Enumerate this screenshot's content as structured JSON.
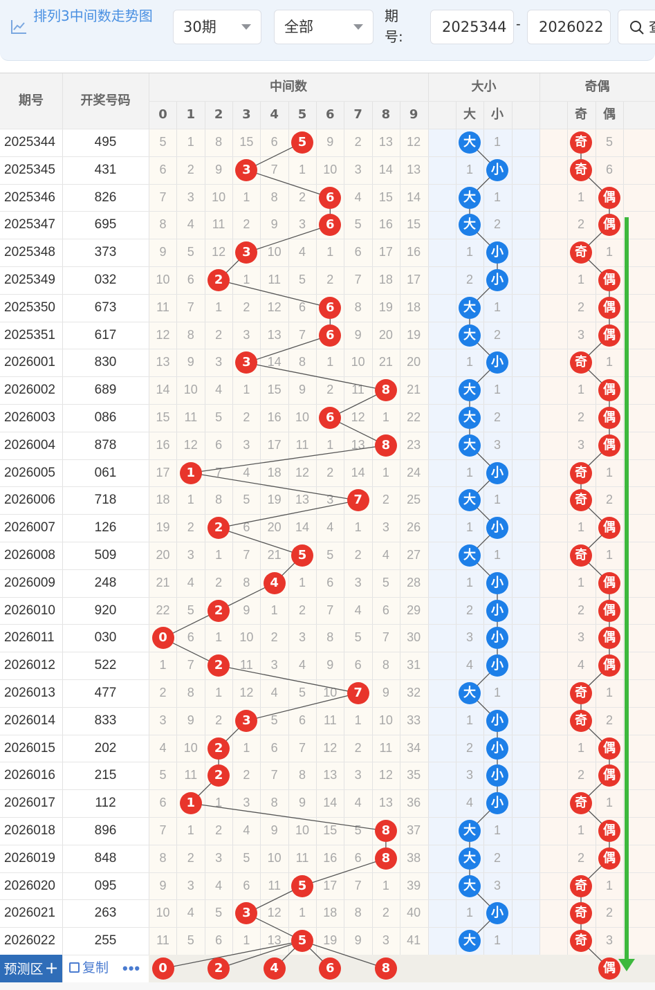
{
  "toolbar": {
    "title": "排列3中间数走势图",
    "periods_select": "30期",
    "type_select": "全部",
    "issue_label": "期号:",
    "start_issue": "2025344",
    "dash": "-",
    "end_issue": "2026022",
    "search_label": "查"
  },
  "table_headers": {
    "issue": "期号",
    "draw": "开奖号码",
    "middle": "中间数",
    "big_small": "大小",
    "odd_even": "奇偶",
    "digits": [
      "0",
      "1",
      "2",
      "3",
      "4",
      "5",
      "6",
      "7",
      "8",
      "9"
    ],
    "big": "大",
    "small": "小",
    "odd": "奇",
    "even": "偶"
  },
  "rows": [
    {
      "issue": "2025344",
      "draw": "495",
      "digits": [
        "5",
        "1",
        "8",
        "15",
        "6",
        "5",
        "9",
        "2",
        "13",
        "12"
      ],
      "mid": 5,
      "bs": [
        "大",
        "1"
      ],
      "oe": [
        "奇",
        "5"
      ]
    },
    {
      "issue": "2025345",
      "draw": "431",
      "digits": [
        "6",
        "2",
        "9",
        "3",
        "7",
        "1",
        "10",
        "3",
        "14",
        "13"
      ],
      "mid": 3,
      "bs": [
        "1",
        "小"
      ],
      "oe": [
        "奇",
        "6"
      ]
    },
    {
      "issue": "2025346",
      "draw": "826",
      "digits": [
        "7",
        "3",
        "10",
        "1",
        "8",
        "2",
        "6",
        "4",
        "15",
        "14"
      ],
      "mid": 6,
      "bs": [
        "大",
        "1"
      ],
      "oe": [
        "1",
        "偶"
      ]
    },
    {
      "issue": "2025347",
      "draw": "695",
      "digits": [
        "8",
        "4",
        "11",
        "2",
        "9",
        "3",
        "6",
        "5",
        "16",
        "15"
      ],
      "mid": 6,
      "bs": [
        "大",
        "2"
      ],
      "oe": [
        "2",
        "偶"
      ]
    },
    {
      "issue": "2025348",
      "draw": "373",
      "digits": [
        "9",
        "5",
        "12",
        "3",
        "10",
        "4",
        "1",
        "6",
        "17",
        "16"
      ],
      "mid": 3,
      "bs": [
        "1",
        "小"
      ],
      "oe": [
        "奇",
        "1"
      ]
    },
    {
      "issue": "2025349",
      "draw": "032",
      "digits": [
        "10",
        "6",
        "2",
        "1",
        "11",
        "5",
        "2",
        "7",
        "18",
        "17"
      ],
      "mid": 2,
      "bs": [
        "2",
        "小"
      ],
      "oe": [
        "1",
        "偶"
      ]
    },
    {
      "issue": "2025350",
      "draw": "673",
      "digits": [
        "11",
        "7",
        "1",
        "2",
        "12",
        "6",
        "6",
        "8",
        "19",
        "18"
      ],
      "mid": 6,
      "bs": [
        "大",
        "1"
      ],
      "oe": [
        "2",
        "偶"
      ]
    },
    {
      "issue": "2025351",
      "draw": "617",
      "digits": [
        "12",
        "8",
        "2",
        "3",
        "13",
        "7",
        "6",
        "9",
        "20",
        "19"
      ],
      "mid": 6,
      "bs": [
        "大",
        "2"
      ],
      "oe": [
        "3",
        "偶"
      ]
    },
    {
      "issue": "2026001",
      "draw": "830",
      "digits": [
        "13",
        "9",
        "3",
        "3",
        "14",
        "8",
        "1",
        "10",
        "21",
        "20"
      ],
      "mid": 3,
      "bs": [
        "1",
        "小"
      ],
      "oe": [
        "奇",
        "1"
      ]
    },
    {
      "issue": "2026002",
      "draw": "689",
      "digits": [
        "14",
        "10",
        "4",
        "1",
        "15",
        "9",
        "2",
        "11",
        "8",
        "21"
      ],
      "mid": 8,
      "bs": [
        "大",
        "1"
      ],
      "oe": [
        "1",
        "偶"
      ]
    },
    {
      "issue": "2026003",
      "draw": "086",
      "digits": [
        "15",
        "11",
        "5",
        "2",
        "16",
        "10",
        "6",
        "12",
        "1",
        "22"
      ],
      "mid": 6,
      "bs": [
        "大",
        "2"
      ],
      "oe": [
        "2",
        "偶"
      ]
    },
    {
      "issue": "2026004",
      "draw": "878",
      "digits": [
        "16",
        "12",
        "6",
        "3",
        "17",
        "11",
        "1",
        "13",
        "8",
        "23"
      ],
      "mid": 8,
      "bs": [
        "大",
        "3"
      ],
      "oe": [
        "3",
        "偶"
      ]
    },
    {
      "issue": "2026005",
      "draw": "061",
      "digits": [
        "17",
        "1",
        "7",
        "4",
        "18",
        "12",
        "2",
        "14",
        "1",
        "24"
      ],
      "mid": 1,
      "bs": [
        "1",
        "小"
      ],
      "oe": [
        "奇",
        "1"
      ]
    },
    {
      "issue": "2026006",
      "draw": "718",
      "digits": [
        "18",
        "1",
        "8",
        "5",
        "19",
        "13",
        "3",
        "7",
        "2",
        "25"
      ],
      "mid": 7,
      "bs": [
        "大",
        "1"
      ],
      "oe": [
        "奇",
        "2"
      ]
    },
    {
      "issue": "2026007",
      "draw": "126",
      "digits": [
        "19",
        "2",
        "2",
        "6",
        "20",
        "14",
        "4",
        "1",
        "3",
        "26"
      ],
      "mid": 2,
      "bs": [
        "1",
        "小"
      ],
      "oe": [
        "1",
        "偶"
      ]
    },
    {
      "issue": "2026008",
      "draw": "509",
      "digits": [
        "20",
        "3",
        "1",
        "7",
        "21",
        "5",
        "5",
        "2",
        "4",
        "27"
      ],
      "mid": 5,
      "bs": [
        "大",
        "1"
      ],
      "oe": [
        "奇",
        "1"
      ]
    },
    {
      "issue": "2026009",
      "draw": "248",
      "digits": [
        "21",
        "4",
        "2",
        "8",
        "4",
        "1",
        "6",
        "3",
        "5",
        "28"
      ],
      "mid": 4,
      "bs": [
        "1",
        "小"
      ],
      "oe": [
        "1",
        "偶"
      ]
    },
    {
      "issue": "2026010",
      "draw": "920",
      "digits": [
        "22",
        "5",
        "2",
        "9",
        "1",
        "2",
        "7",
        "4",
        "6",
        "29"
      ],
      "mid": 2,
      "bs": [
        "2",
        "小"
      ],
      "oe": [
        "2",
        "偶"
      ]
    },
    {
      "issue": "2026011",
      "draw": "030",
      "digits": [
        "0",
        "6",
        "1",
        "10",
        "2",
        "3",
        "8",
        "5",
        "7",
        "30"
      ],
      "mid": 0,
      "bs": [
        "3",
        "小"
      ],
      "oe": [
        "3",
        "偶"
      ]
    },
    {
      "issue": "2026012",
      "draw": "522",
      "digits": [
        "1",
        "7",
        "2",
        "11",
        "3",
        "4",
        "9",
        "6",
        "8",
        "31"
      ],
      "mid": 2,
      "bs": [
        "4",
        "小"
      ],
      "oe": [
        "4",
        "偶"
      ]
    },
    {
      "issue": "2026013",
      "draw": "477",
      "digits": [
        "2",
        "8",
        "1",
        "12",
        "4",
        "5",
        "10",
        "7",
        "9",
        "32"
      ],
      "mid": 7,
      "bs": [
        "大",
        "1"
      ],
      "oe": [
        "奇",
        "1"
      ]
    },
    {
      "issue": "2026014",
      "draw": "833",
      "digits": [
        "3",
        "9",
        "2",
        "3",
        "5",
        "6",
        "11",
        "1",
        "10",
        "33"
      ],
      "mid": 3,
      "bs": [
        "1",
        "小"
      ],
      "oe": [
        "奇",
        "2"
      ]
    },
    {
      "issue": "2026015",
      "draw": "202",
      "digits": [
        "4",
        "10",
        "2",
        "1",
        "6",
        "7",
        "12",
        "2",
        "11",
        "34"
      ],
      "mid": 2,
      "bs": [
        "2",
        "小"
      ],
      "oe": [
        "1",
        "偶"
      ]
    },
    {
      "issue": "2026016",
      "draw": "215",
      "digits": [
        "5",
        "11",
        "2",
        "2",
        "7",
        "8",
        "13",
        "3",
        "12",
        "35"
      ],
      "mid": 2,
      "bs": [
        "3",
        "小"
      ],
      "oe": [
        "2",
        "偶"
      ]
    },
    {
      "issue": "2026017",
      "draw": "112",
      "digits": [
        "6",
        "1",
        "1",
        "3",
        "8",
        "9",
        "14",
        "4",
        "13",
        "36"
      ],
      "mid": 1,
      "bs": [
        "4",
        "小"
      ],
      "oe": [
        "奇",
        "1"
      ]
    },
    {
      "issue": "2026018",
      "draw": "896",
      "digits": [
        "7",
        "1",
        "2",
        "4",
        "9",
        "10",
        "15",
        "5",
        "8",
        "37"
      ],
      "mid": 8,
      "bs": [
        "大",
        "1"
      ],
      "oe": [
        "1",
        "偶"
      ]
    },
    {
      "issue": "2026019",
      "draw": "848",
      "digits": [
        "8",
        "2",
        "3",
        "5",
        "10",
        "11",
        "16",
        "6",
        "8",
        "38"
      ],
      "mid": 8,
      "bs": [
        "大",
        "2"
      ],
      "oe": [
        "2",
        "偶"
      ]
    },
    {
      "issue": "2026020",
      "draw": "095",
      "digits": [
        "9",
        "3",
        "4",
        "6",
        "11",
        "5",
        "17",
        "7",
        "1",
        "39"
      ],
      "mid": 5,
      "bs": [
        "大",
        "3"
      ],
      "oe": [
        "奇",
        "1"
      ]
    },
    {
      "issue": "2026021",
      "draw": "263",
      "digits": [
        "10",
        "4",
        "5",
        "3",
        "12",
        "1",
        "18",
        "8",
        "2",
        "40"
      ],
      "mid": 3,
      "bs": [
        "1",
        "小"
      ],
      "oe": [
        "奇",
        "2"
      ]
    },
    {
      "issue": "2026022",
      "draw": "255",
      "digits": [
        "11",
        "5",
        "6",
        "1",
        "13",
        "5",
        "19",
        "9",
        "3",
        "41"
      ],
      "mid": 5,
      "bs": [
        "大",
        "1"
      ],
      "oe": [
        "奇",
        "3"
      ]
    }
  ],
  "predict": {
    "label": "预测区",
    "plus": "+",
    "copy": "复制",
    "more": "•••",
    "balls": [
      "0",
      "2",
      "4",
      "6",
      "8"
    ],
    "oe_ball": "偶"
  },
  "colors": {
    "ball_red": "#e8352b",
    "ball_blue": "#1d7fe8",
    "arrow_green": "#3db83d",
    "title_blue": "#4a90e2"
  }
}
